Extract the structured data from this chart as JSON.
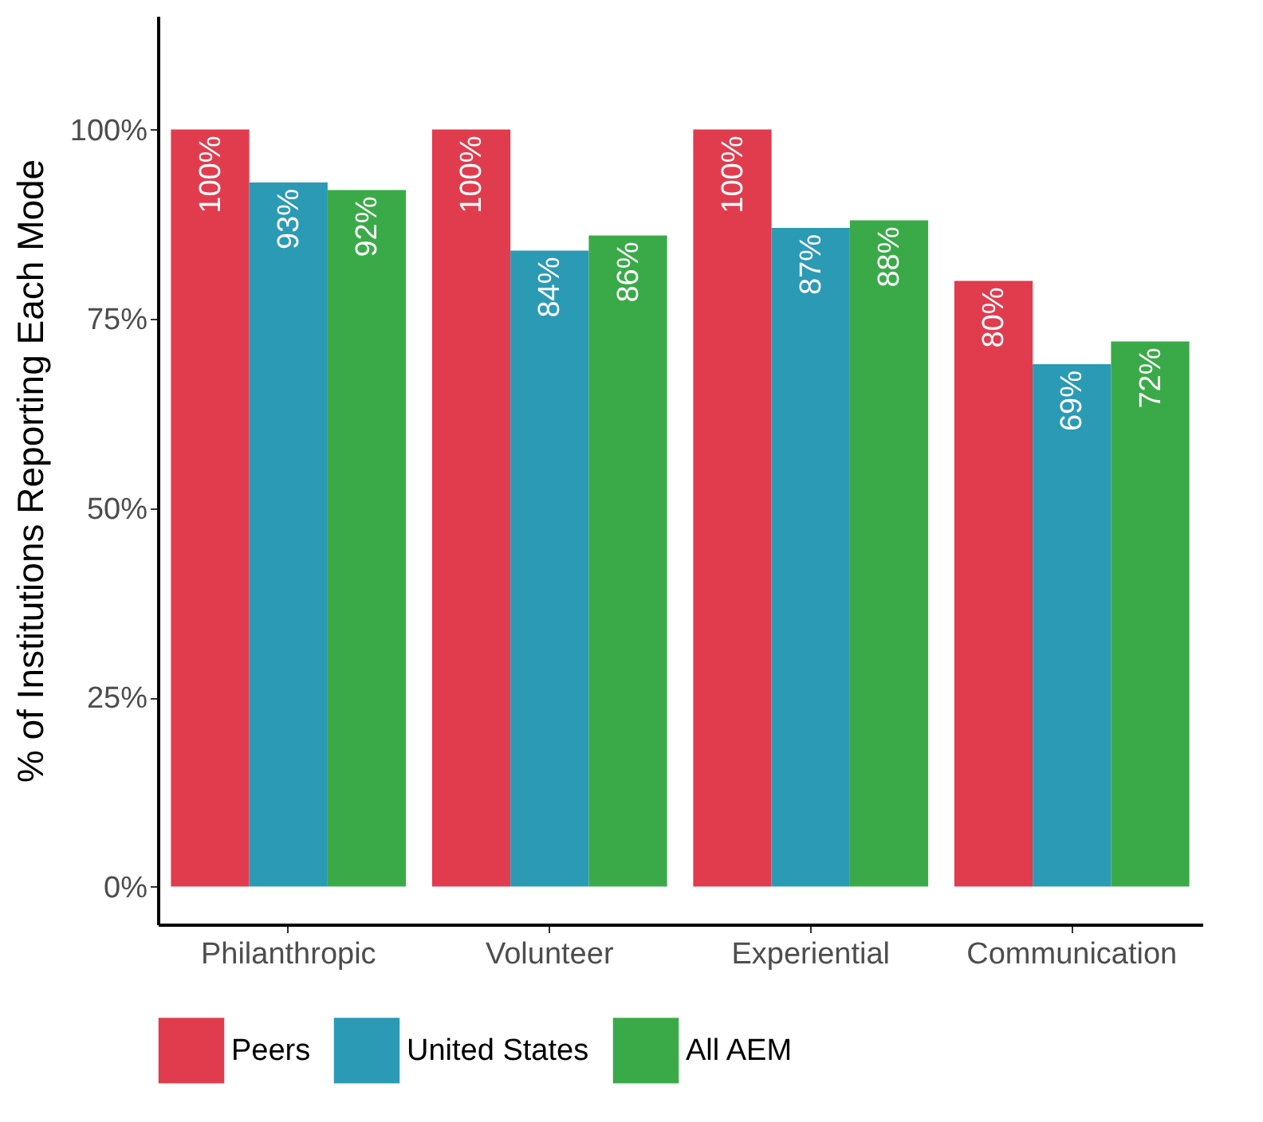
{
  "chart_data": {
    "type": "bar",
    "ylabel": "% of Institutions Reporting Each Mode",
    "categories": [
      "Philanthropic",
      "Volunteer",
      "Experiential",
      "Communication"
    ],
    "series": [
      {
        "name": "Peers",
        "color": "#e03c4e",
        "values": [
          100,
          100,
          100,
          80
        ],
        "value_labels": [
          "100%",
          "100%",
          "100%",
          "80%"
        ]
      },
      {
        "name": "United States",
        "color": "#2b9ab5",
        "values": [
          93,
          84,
          87,
          69
        ],
        "value_labels": [
          "93%",
          "84%",
          "87%",
          "69%"
        ]
      },
      {
        "name": "All AEM",
        "color": "#3aaa48",
        "values": [
          92,
          86,
          88,
          72
        ],
        "value_labels": [
          "92%",
          "86%",
          "88%",
          "72%"
        ]
      }
    ],
    "ylim": [
      -5,
      115
    ],
    "yticks": [
      {
        "value": 0,
        "label": "0%"
      },
      {
        "value": 25,
        "label": "25%"
      },
      {
        "value": 50,
        "label": "50%"
      },
      {
        "value": 75,
        "label": "75%"
      },
      {
        "value": 100,
        "label": "100%"
      }
    ],
    "grid": false,
    "legend": "bottom"
  }
}
